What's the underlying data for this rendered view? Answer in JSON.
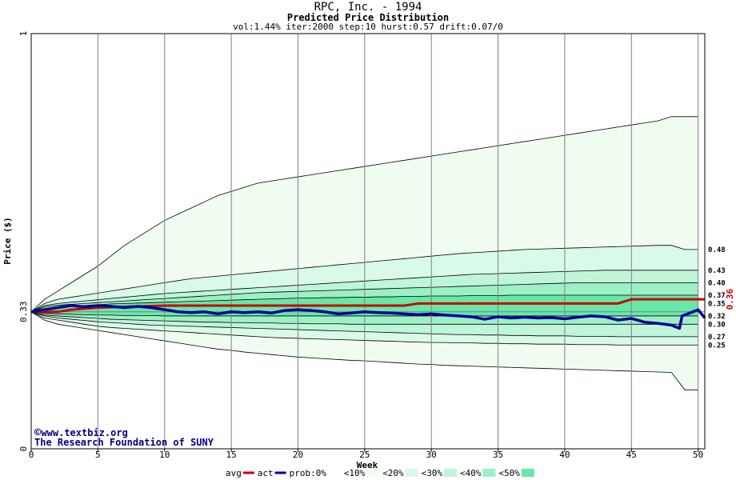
{
  "chart_data": {
    "type": "area",
    "title": "RPC, Inc. - 1994",
    "subtitle": "Predicted Price Distribution",
    "params": "vol:1.44% iter:2000 step:10 hurst:0.57 drift:0.07/0",
    "xlabel": "Week",
    "ylabel": "Price ($)",
    "xlim": [
      0,
      50.5
    ],
    "ylim": [
      0,
      1
    ],
    "x_ticks": [
      "0",
      "5",
      "10",
      "15",
      "20",
      "25",
      "30",
      "35",
      "40",
      "45",
      "50"
    ],
    "y_ticks": [
      {
        "value": 0,
        "label": "0"
      },
      {
        "value": 0.33,
        "label": "0.33"
      },
      {
        "value": 1,
        "label": "1"
      }
    ],
    "grid": true,
    "start_price": 0.33,
    "current_price": 0.36,
    "current_price_label": "0.36",
    "right_labels": [
      {
        "value": 0.48,
        "label": "0.48"
      },
      {
        "value": 0.43,
        "label": "0.43"
      },
      {
        "value": 0.4,
        "label": "0.40"
      },
      {
        "value": 0.37,
        "label": "0.37"
      },
      {
        "value": 0.35,
        "label": "0.35"
      },
      {
        "value": 0.32,
        "label": "0.32"
      },
      {
        "value": 0.3,
        "label": "0.30"
      },
      {
        "value": 0.27,
        "label": "0.27"
      },
      {
        "value": 0.25,
        "label": "0.25"
      }
    ],
    "bands": [
      {
        "name": "<10%",
        "color": "#f0fcf0",
        "upper": [
          0.33,
          0.36,
          0.38,
          0.4,
          0.42,
          0.44,
          0.465,
          0.49,
          0.51,
          0.53,
          0.55,
          0.565,
          0.58,
          0.595,
          0.61,
          0.62,
          0.63,
          0.64,
          0.645,
          0.65,
          0.655,
          0.66,
          0.665,
          0.67,
          0.675,
          0.68,
          0.685,
          0.69,
          0.695,
          0.7,
          0.705,
          0.71,
          0.715,
          0.72,
          0.725,
          0.73,
          0.735,
          0.74,
          0.745,
          0.75,
          0.755,
          0.76,
          0.765,
          0.77,
          0.775,
          0.78,
          0.785,
          0.79,
          0.8,
          0.8,
          0.8
        ],
        "lower": [
          0.33,
          0.31,
          0.3,
          0.295,
          0.29,
          0.285,
          0.28,
          0.275,
          0.27,
          0.265,
          0.26,
          0.255,
          0.25,
          0.245,
          0.24,
          0.237,
          0.233,
          0.23,
          0.227,
          0.224,
          0.221,
          0.219,
          0.217,
          0.215,
          0.213,
          0.212,
          0.21,
          0.208,
          0.206,
          0.204,
          0.203,
          0.201,
          0.2,
          0.199,
          0.198,
          0.197,
          0.196,
          0.195,
          0.194,
          0.193,
          0.192,
          0.191,
          0.19,
          0.189,
          0.188,
          0.187,
          0.186,
          0.185,
          0.184,
          0.142,
          0.142
        ]
      },
      {
        "name": "<20%",
        "color": "#d9f9e9",
        "upper": [
          0.33,
          0.35,
          0.36,
          0.365,
          0.37,
          0.375,
          0.38,
          0.385,
          0.39,
          0.395,
          0.4,
          0.405,
          0.41,
          0.413,
          0.416,
          0.419,
          0.422,
          0.425,
          0.428,
          0.431,
          0.434,
          0.437,
          0.44,
          0.443,
          0.446,
          0.449,
          0.452,
          0.455,
          0.458,
          0.461,
          0.464,
          0.467,
          0.47,
          0.472,
          0.474,
          0.476,
          0.478,
          0.48,
          0.481,
          0.482,
          0.483,
          0.484,
          0.485,
          0.486,
          0.487,
          0.488,
          0.489,
          0.49,
          0.49,
          0.48,
          0.48
        ],
        "lower": [
          0.33,
          0.315,
          0.31,
          0.305,
          0.3,
          0.295,
          0.292,
          0.29,
          0.288,
          0.286,
          0.284,
          0.282,
          0.28,
          0.278,
          0.276,
          0.274,
          0.272,
          0.27,
          0.268,
          0.267,
          0.266,
          0.265,
          0.264,
          0.263,
          0.262,
          0.261,
          0.26,
          0.259,
          0.258,
          0.257,
          0.256,
          0.256,
          0.255,
          0.255,
          0.254,
          0.254,
          0.253,
          0.253,
          0.252,
          0.252,
          0.252,
          0.251,
          0.251,
          0.251,
          0.25,
          0.25,
          0.25,
          0.25,
          0.25,
          0.25,
          0.25
        ]
      },
      {
        "name": "<30%",
        "color": "#bff5d8",
        "upper": [
          0.33,
          0.345,
          0.35,
          0.353,
          0.356,
          0.359,
          0.362,
          0.365,
          0.368,
          0.371,
          0.374,
          0.376,
          0.378,
          0.38,
          0.382,
          0.384,
          0.386,
          0.388,
          0.39,
          0.392,
          0.394,
          0.396,
          0.398,
          0.4,
          0.402,
          0.404,
          0.406,
          0.408,
          0.41,
          0.412,
          0.414,
          0.416,
          0.418,
          0.42,
          0.421,
          0.422,
          0.423,
          0.424,
          0.425,
          0.426,
          0.427,
          0.428,
          0.429,
          0.43,
          0.43,
          0.43,
          0.43,
          0.43,
          0.43,
          0.43,
          0.43
        ],
        "lower": [
          0.33,
          0.32,
          0.315,
          0.312,
          0.309,
          0.306,
          0.304,
          0.302,
          0.3,
          0.298,
          0.297,
          0.296,
          0.295,
          0.294,
          0.293,
          0.292,
          0.291,
          0.29,
          0.289,
          0.288,
          0.287,
          0.286,
          0.285,
          0.284,
          0.283,
          0.282,
          0.281,
          0.28,
          0.279,
          0.278,
          0.277,
          0.276,
          0.275,
          0.275,
          0.274,
          0.274,
          0.273,
          0.273,
          0.272,
          0.272,
          0.272,
          0.271,
          0.271,
          0.271,
          0.27,
          0.27,
          0.27,
          0.27,
          0.27,
          0.27,
          0.27
        ]
      },
      {
        "name": "<40%",
        "color": "#9df0c4",
        "upper": [
          0.33,
          0.342,
          0.346,
          0.348,
          0.35,
          0.352,
          0.354,
          0.356,
          0.358,
          0.36,
          0.362,
          0.364,
          0.366,
          0.368,
          0.37,
          0.372,
          0.374,
          0.376,
          0.377,
          0.378,
          0.379,
          0.38,
          0.381,
          0.382,
          0.383,
          0.384,
          0.385,
          0.386,
          0.387,
          0.388,
          0.389,
          0.39,
          0.391,
          0.392,
          0.393,
          0.394,
          0.395,
          0.396,
          0.397,
          0.398,
          0.399,
          0.4,
          0.4,
          0.4,
          0.4,
          0.4,
          0.4,
          0.4,
          0.4,
          0.4,
          0.4
        ],
        "lower": [
          0.33,
          0.322,
          0.32,
          0.318,
          0.316,
          0.314,
          0.312,
          0.311,
          0.31,
          0.309,
          0.308,
          0.307,
          0.306,
          0.305,
          0.305,
          0.304,
          0.304,
          0.303,
          0.303,
          0.302,
          0.302,
          0.301,
          0.301,
          0.301,
          0.3,
          0.3,
          0.3,
          0.3,
          0.3,
          0.3,
          0.3,
          0.3,
          0.3,
          0.3,
          0.3,
          0.3,
          0.3,
          0.3,
          0.3,
          0.3,
          0.3,
          0.3,
          0.3,
          0.3,
          0.3,
          0.3,
          0.3,
          0.3,
          0.3,
          0.3,
          0.3
        ]
      },
      {
        "name": "<50%",
        "color": "#66e8a8",
        "upper": [
          0.33,
          0.338,
          0.341,
          0.343,
          0.345,
          0.347,
          0.349,
          0.35,
          0.351,
          0.352,
          0.353,
          0.354,
          0.355,
          0.356,
          0.357,
          0.358,
          0.359,
          0.36,
          0.361,
          0.362,
          0.363,
          0.363,
          0.364,
          0.364,
          0.365,
          0.365,
          0.366,
          0.366,
          0.367,
          0.367,
          0.368,
          0.368,
          0.368,
          0.369,
          0.369,
          0.369,
          0.37,
          0.37,
          0.37,
          0.37,
          0.37,
          0.37,
          0.37,
          0.37,
          0.37,
          0.37,
          0.37,
          0.37,
          0.37,
          0.37,
          0.37
        ],
        "lower": [
          0.33,
          0.326,
          0.325,
          0.324,
          0.323,
          0.322,
          0.322,
          0.321,
          0.321,
          0.321,
          0.32,
          0.32,
          0.32,
          0.32,
          0.32,
          0.32,
          0.32,
          0.32,
          0.32,
          0.32,
          0.32,
          0.32,
          0.32,
          0.32,
          0.32,
          0.32,
          0.32,
          0.32,
          0.32,
          0.32,
          0.32,
          0.32,
          0.32,
          0.32,
          0.32,
          0.32,
          0.32,
          0.32,
          0.32,
          0.32,
          0.32,
          0.32,
          0.32,
          0.32,
          0.32,
          0.32,
          0.32,
          0.32,
          0.32,
          0.32,
          0.32
        ]
      }
    ],
    "series": [
      {
        "name": "avg",
        "color": "#cc0000",
        "x": [
          0,
          2,
          3,
          5,
          10,
          20,
          28,
          29,
          44,
          45,
          50.5
        ],
        "y": [
          0.33,
          0.33,
          0.335,
          0.34,
          0.345,
          0.345,
          0.345,
          0.35,
          0.35,
          0.36,
          0.36
        ]
      },
      {
        "name": "act",
        "color": "#000099",
        "x": [
          0,
          1,
          2,
          3,
          4,
          5,
          6,
          7,
          8,
          9,
          10,
          11,
          12,
          13,
          14,
          15,
          16,
          17,
          18,
          19,
          20,
          21,
          22,
          23,
          24,
          25,
          26,
          27,
          28,
          29,
          30,
          31,
          32,
          33,
          34,
          35,
          36,
          37,
          38,
          39,
          40,
          41,
          42,
          43,
          44,
          45,
          46,
          47,
          48,
          48.6,
          48.8,
          49.2,
          50,
          50.5
        ],
        "y": [
          0.33,
          0.335,
          0.34,
          0.345,
          0.342,
          0.345,
          0.343,
          0.34,
          0.343,
          0.34,
          0.335,
          0.33,
          0.328,
          0.33,
          0.325,
          0.33,
          0.328,
          0.33,
          0.327,
          0.333,
          0.335,
          0.333,
          0.33,
          0.325,
          0.327,
          0.33,
          0.328,
          0.327,
          0.325,
          0.323,
          0.325,
          0.322,
          0.32,
          0.318,
          0.312,
          0.318,
          0.315,
          0.317,
          0.315,
          0.316,
          0.313,
          0.317,
          0.32,
          0.318,
          0.31,
          0.314,
          0.305,
          0.302,
          0.298,
          0.29,
          0.32,
          0.325,
          0.335,
          0.315
        ]
      }
    ]
  },
  "legend": {
    "items": [
      {
        "label": "avg",
        "swatch": "line",
        "color": "#cc0000"
      },
      {
        "label": "act",
        "swatch": "line",
        "color": "#000099"
      },
      {
        "label": "prob:0%",
        "swatch": "box",
        "color": "#ffffff"
      },
      {
        "label": "<10%",
        "swatch": "box",
        "color": "#f0fcf0"
      },
      {
        "label": "<20%",
        "swatch": "box",
        "color": "#d9f9e9"
      },
      {
        "label": "<30%",
        "swatch": "box",
        "color": "#bff5d8"
      },
      {
        "label": "<40%",
        "swatch": "box",
        "color": "#9df0c4"
      },
      {
        "label": "<50%",
        "swatch": "box",
        "color": "#66e8a8"
      }
    ]
  },
  "credits": {
    "site": "www.textbiz.org",
    "org": "The Research Foundation of SUNY",
    "copyright_symbol": "©"
  }
}
